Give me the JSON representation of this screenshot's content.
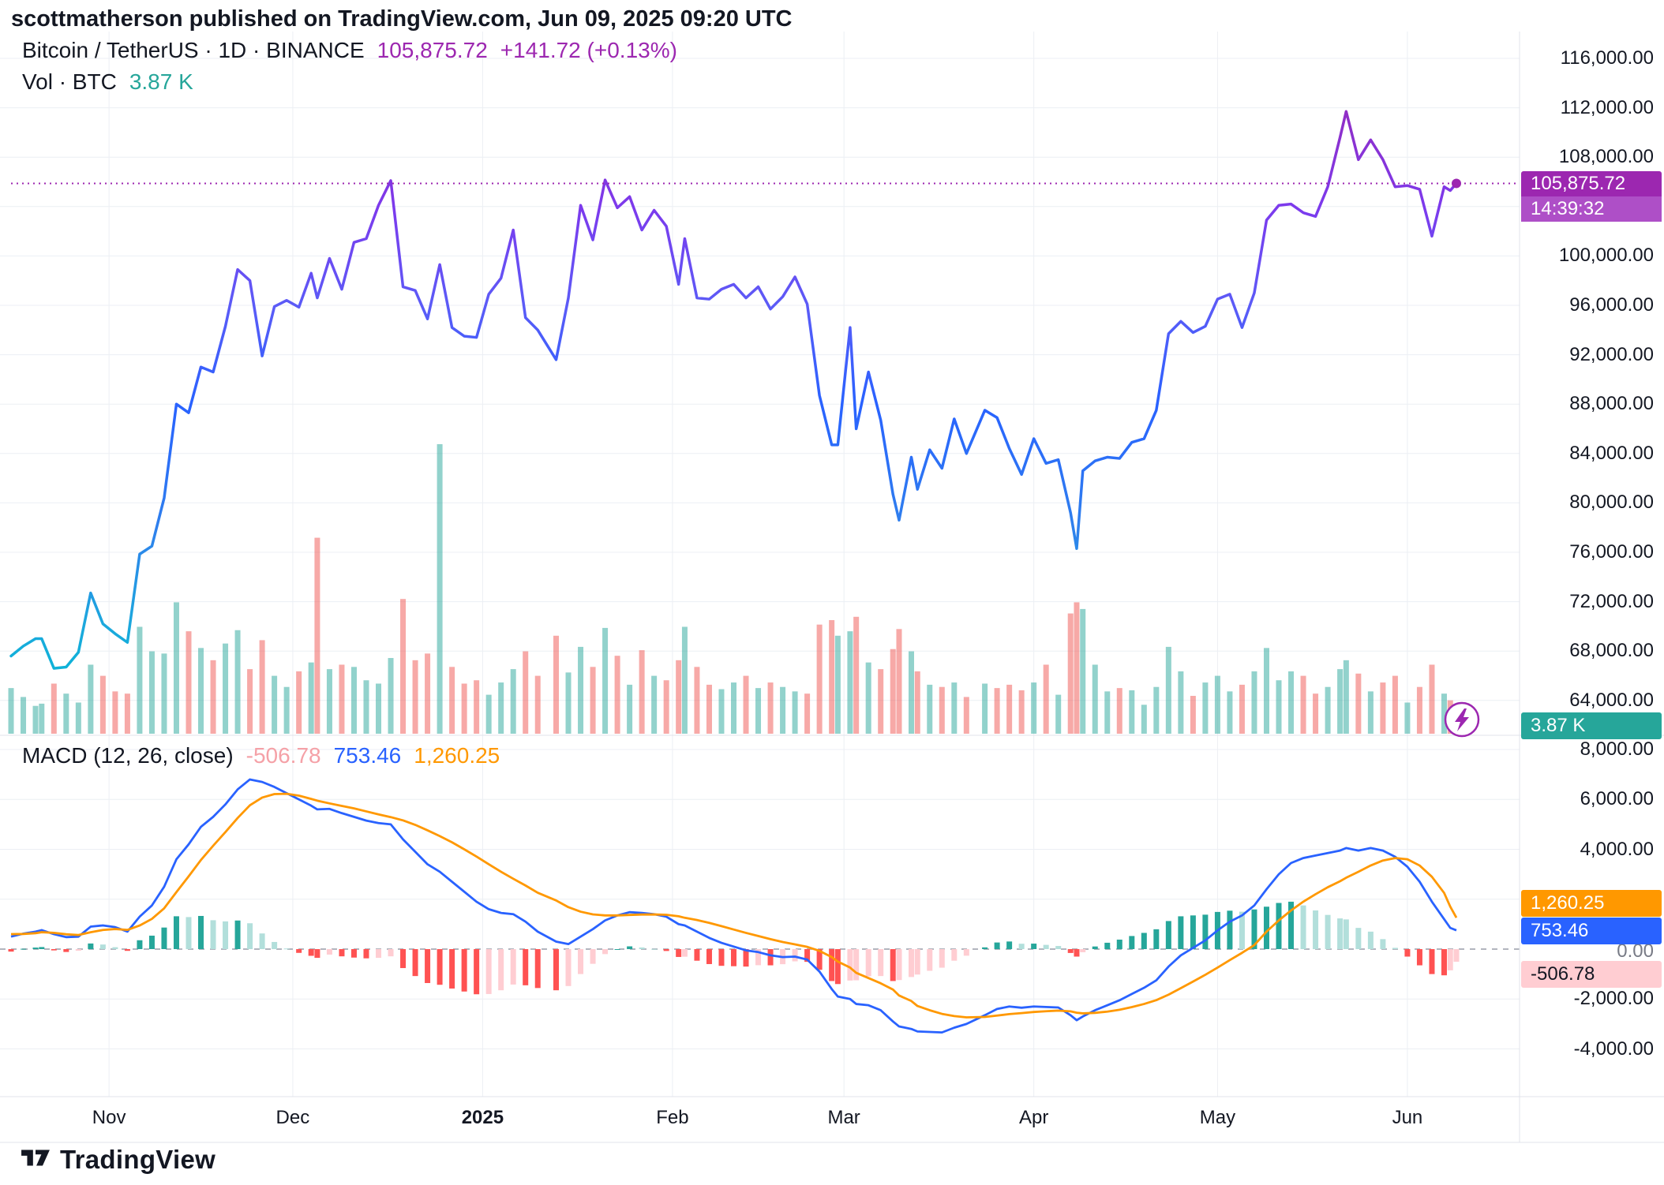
{
  "header": {
    "attribution": "scottmatherson published on TradingView.com, Jun 09, 2025 09:20 UTC"
  },
  "price_pane": {
    "legend": {
      "symbol_line": "Bitcoin / TetherUS · 1D · BINANCE",
      "last_price": "105,875.72",
      "change": "+141.72 (+0.13%)",
      "vol_label": "Vol · BTC",
      "vol_value": "3.87 K"
    },
    "price_label": "105,875.72",
    "countdown": "14:39:32",
    "volume_badge": "3.87 K",
    "axis_labels": [
      "116,000.00",
      "112,000.00",
      "108,000.00",
      "100,000.00",
      "96,000.00",
      "92,000.00",
      "88,000.00",
      "84,000.00",
      "80,000.00",
      "76,000.00",
      "72,000.00",
      "68,000.00",
      "64,000.00"
    ]
  },
  "macd_pane": {
    "legend": {
      "title": "MACD (12, 26, close)",
      "hist_value": "-506.78",
      "macd_value": "753.46",
      "signal_value": "1,260.25"
    },
    "axis_labels": [
      "8,000.00",
      "6,000.00",
      "4,000.00",
      "-2,000.00",
      "-4,000.00"
    ],
    "zero_label": "0.00",
    "badges": {
      "signal": "1,260.25",
      "macd": "753.46",
      "hist": "-506.78"
    }
  },
  "time_axis": {
    "labels": [
      {
        "text": "Nov",
        "date": "2024-11-01"
      },
      {
        "text": "Dec",
        "date": "2024-12-01"
      },
      {
        "text": "2025",
        "date": "2025-01-01",
        "bold": true
      },
      {
        "text": "Feb",
        "date": "2025-02-01"
      },
      {
        "text": "Mar",
        "date": "2025-03-01"
      },
      {
        "text": "Apr",
        "date": "2025-04-01"
      },
      {
        "text": "May",
        "date": "2025-05-01"
      },
      {
        "text": "Jun",
        "date": "2025-06-01"
      }
    ]
  },
  "footer": {
    "brand": "TradingView"
  },
  "colors": {
    "accent_purple": "#9C27B0",
    "countdown_purple": "#AE4FC7",
    "macd_blue": "#2962FF",
    "signal_orange": "#FF9800",
    "teal": "#26A69A",
    "hist_pos": "#26A69A",
    "hist_pos_light": "#B2DFDB",
    "hist_neg": "#FF5252",
    "hist_neg_light": "#FFCDD2",
    "vol_up": "rgba(38,166,154,0.5)",
    "vol_down": "rgba(239,83,80,0.5)",
    "grid": "#ECEFF4",
    "border": "#E0E3EB",
    "zero_line": "#B2B5BE",
    "axis_text": "#131722",
    "pink_badge_bg": "#FFCDD2",
    "legend_hist_value": "#F5A1A7",
    "line_gradient": [
      [
        "0",
        "#9C27B0"
      ],
      [
        "0.23",
        "#7C3AED"
      ],
      [
        "0.38",
        "#5B5BF7"
      ],
      [
        "0.53",
        "#2962FF"
      ],
      [
        "0.72",
        "#2F80ED"
      ],
      [
        "0.87",
        "#1CA8DD"
      ],
      [
        "1",
        "#00BCD4"
      ]
    ]
  },
  "chart_data": {
    "type": "line",
    "title": "Bitcoin / TetherUS · 1D · BINANCE",
    "symbol": "BTCUSDT",
    "timeframe": "1D",
    "exchange": "BINANCE",
    "last_price": 105875.72,
    "change": 141.72,
    "change_pct": 0.13,
    "countdown": "14:39:32",
    "current_volume_kbtc": 3.87,
    "legend_position": "top-left",
    "grid": true,
    "price_axis": {
      "min": 64000,
      "max": 116000,
      "tick": 4000
    },
    "macd_axis": {
      "min": -4000,
      "max": 8000,
      "tick": 2000
    },
    "macd_settings": {
      "fast": 12,
      "slow": 26,
      "source": "close",
      "macd": 753.46,
      "signal": 1260.25,
      "histogram": -506.78
    },
    "dates": [
      "2024-10-16",
      "2024-10-18",
      "2024-10-20",
      "2024-10-21",
      "2024-10-23",
      "2024-10-25",
      "2024-10-27",
      "2024-10-29",
      "2024-10-31",
      "2024-11-02",
      "2024-11-04",
      "2024-11-06",
      "2024-11-08",
      "2024-11-10",
      "2024-11-12",
      "2024-11-14",
      "2024-11-16",
      "2024-11-18",
      "2024-11-20",
      "2024-11-22",
      "2024-11-24",
      "2024-11-26",
      "2024-11-28",
      "2024-11-30",
      "2024-12-02",
      "2024-12-04",
      "2024-12-05",
      "2024-12-07",
      "2024-12-09",
      "2024-12-11",
      "2024-12-13",
      "2024-12-15",
      "2024-12-17",
      "2024-12-19",
      "2024-12-21",
      "2024-12-23",
      "2024-12-25",
      "2024-12-27",
      "2024-12-29",
      "2024-12-31",
      "2025-01-02",
      "2025-01-04",
      "2025-01-06",
      "2025-01-08",
      "2025-01-10",
      "2025-01-13",
      "2025-01-15",
      "2025-01-17",
      "2025-01-19",
      "2025-01-21",
      "2025-01-23",
      "2025-01-25",
      "2025-01-27",
      "2025-01-29",
      "2025-01-31",
      "2025-02-02",
      "2025-02-03",
      "2025-02-05",
      "2025-02-07",
      "2025-02-09",
      "2025-02-11",
      "2025-02-13",
      "2025-02-15",
      "2025-02-17",
      "2025-02-19",
      "2025-02-21",
      "2025-02-23",
      "2025-02-25",
      "2025-02-27",
      "2025-02-28",
      "2025-03-02",
      "2025-03-03",
      "2025-03-05",
      "2025-03-07",
      "2025-03-09",
      "2025-03-10",
      "2025-03-12",
      "2025-03-13",
      "2025-03-15",
      "2025-03-17",
      "2025-03-19",
      "2025-03-21",
      "2025-03-24",
      "2025-03-26",
      "2025-03-28",
      "2025-03-30",
      "2025-04-01",
      "2025-04-03",
      "2025-04-05",
      "2025-04-07",
      "2025-04-08",
      "2025-04-09",
      "2025-04-11",
      "2025-04-13",
      "2025-04-15",
      "2025-04-17",
      "2025-04-19",
      "2025-04-21",
      "2025-04-23",
      "2025-04-25",
      "2025-04-27",
      "2025-04-29",
      "2025-05-01",
      "2025-05-03",
      "2025-05-05",
      "2025-05-07",
      "2025-05-09",
      "2025-05-11",
      "2025-05-13",
      "2025-05-15",
      "2025-05-17",
      "2025-05-19",
      "2025-05-21",
      "2025-05-22",
      "2025-05-24",
      "2025-05-26",
      "2025-05-28",
      "2025-05-30",
      "2025-06-01",
      "2025-06-03",
      "2025-06-05",
      "2025-06-07",
      "2025-06-08",
      "2025-06-09"
    ],
    "close": [
      67600,
      68400,
      69000,
      69000,
      66600,
      66700,
      67900,
      72700,
      70200,
      69400,
      68700,
      75850,
      76500,
      80400,
      88000,
      87300,
      91000,
      90600,
      94300,
      98900,
      98000,
      91900,
      95900,
      96400,
      95850,
      98600,
      96600,
      99800,
      97300,
      101100,
      101400,
      104100,
      106100,
      97500,
      97200,
      94900,
      99300,
      94200,
      93500,
      93400,
      96900,
      98200,
      102100,
      95000,
      94000,
      91600,
      96600,
      104100,
      101300,
      106150,
      103900,
      104800,
      102100,
      103700,
      102400,
      97700,
      101400,
      96600,
      96500,
      97300,
      97700,
      96600,
      97500,
      95700,
      96700,
      98300,
      96100,
      88700,
      84700,
      84700,
      94200,
      86000,
      90600,
      86700,
      80700,
      78600,
      83700,
      81100,
      84300,
      82800,
      86800,
      84000,
      87500,
      86900,
      84400,
      82300,
      85200,
      83200,
      83500,
      79200,
      76300,
      82600,
      83400,
      83700,
      83600,
      84900,
      85200,
      87500,
      93700,
      94700,
      93800,
      94300,
      96500,
      96900,
      94200,
      97000,
      102900,
      104100,
      104200,
      103500,
      103200,
      105600,
      109600,
      111700,
      107800,
      109400,
      107800,
      105600,
      105700,
      105400,
      101600,
      105600,
      105300,
      105875.72
    ],
    "volume_kbtc": [
      41,
      33,
      25,
      27,
      45,
      36,
      28,
      62,
      52,
      38,
      36,
      96,
      74,
      72,
      118,
      92,
      77,
      66,
      81,
      93,
      58,
      84,
      52,
      42,
      56,
      64,
      176,
      58,
      62,
      60,
      48,
      45,
      68,
      121,
      66,
      72,
      260,
      60,
      45,
      48,
      35,
      46,
      58,
      74,
      52,
      88,
      55,
      78,
      60,
      95,
      70,
      44,
      75,
      52,
      48,
      66,
      96,
      60,
      44,
      40,
      46,
      52,
      41,
      46,
      42,
      38,
      36,
      98,
      102,
      88,
      92,
      105,
      64,
      58,
      76,
      94,
      74,
      56,
      44,
      42,
      46,
      33,
      45,
      41,
      44,
      39,
      46,
      62,
      35,
      108,
      118,
      112,
      62,
      38,
      41,
      39,
      26,
      42,
      78,
      56,
      34,
      46,
      52,
      38,
      44,
      56,
      77,
      48,
      56,
      52,
      36,
      42,
      58,
      66,
      54,
      38,
      46,
      52,
      28,
      42,
      62,
      36,
      30,
      3.87
    ],
    "macd": [
      500,
      620,
      700,
      760,
      600,
      480,
      500,
      900,
      950,
      880,
      700,
      1300,
      1750,
      2500,
      3600,
      4200,
      4900,
      5300,
      5800,
      6400,
      6800,
      6700,
      6500,
      6250,
      6000,
      5750,
      5600,
      5620,
      5450,
      5300,
      5150,
      5050,
      5000,
      4400,
      3900,
      3400,
      3100,
      2700,
      2300,
      1900,
      1600,
      1450,
      1400,
      1100,
      700,
      300,
      200,
      500,
      800,
      1150,
      1350,
      1480,
      1450,
      1400,
      1300,
      1000,
      950,
      700,
      450,
      250,
      100,
      -50,
      -120,
      -250,
      -320,
      -300,
      -420,
      -900,
      -1600,
      -1900,
      -2000,
      -2200,
      -2250,
      -2450,
      -2900,
      -3100,
      -3200,
      -3300,
      -3320,
      -3340,
      -3150,
      -3000,
      -2650,
      -2400,
      -2300,
      -2350,
      -2300,
      -2320,
      -2340,
      -2650,
      -2850,
      -2700,
      -2450,
      -2250,
      -2050,
      -1800,
      -1550,
      -1250,
      -700,
      -250,
      50,
      350,
      750,
      1100,
      1350,
      1750,
      2400,
      3000,
      3450,
      3650,
      3750,
      3850,
      3950,
      4050,
      3950,
      4050,
      3950,
      3700,
      3300,
      2700,
      1900,
      1200,
      850,
      753.46
    ],
    "macd_signal": [
      600,
      607,
      638,
      678,
      652,
      595,
      564,
      675,
      766,
      804,
      770,
      945,
      1211,
      1636,
      2284,
      2916,
      3571,
      4142,
      4689,
      5254,
      5764,
      6073,
      6214,
      6226,
      6151,
      6019,
      5950,
      5840,
      5740,
      5640,
      5520,
      5400,
      5290,
      5160,
      4980,
      4760,
      4530,
      4280,
      4000,
      3710,
      3400,
      3100,
      2820,
      2550,
      2260,
      1950,
      1680,
      1500,
      1390,
      1350,
      1350,
      1370,
      1385,
      1390,
      1375,
      1315,
      1255,
      1165,
      1050,
      920,
      785,
      650,
      525,
      400,
      285,
      190,
      90,
      -70,
      -320,
      -500,
      -740,
      -950,
      -1160,
      -1370,
      -1620,
      -1860,
      -2080,
      -2280,
      -2450,
      -2595,
      -2685,
      -2735,
      -2720,
      -2665,
      -2605,
      -2565,
      -2520,
      -2490,
      -2465,
      -2495,
      -2550,
      -2575,
      -2555,
      -2505,
      -2430,
      -2325,
      -2200,
      -2045,
      -1825,
      -1565,
      -1300,
      -1030,
      -740,
      -440,
      -150,
      160,
      700,
      1150,
      1550,
      1900,
      2200,
      2480,
      2720,
      2860,
      3100,
      3350,
      3550,
      3650,
      3600,
      3350,
      2900,
      2250,
      1700,
      1260.25
    ],
    "histogram_rule": "histogram = macd - macd_signal"
  }
}
